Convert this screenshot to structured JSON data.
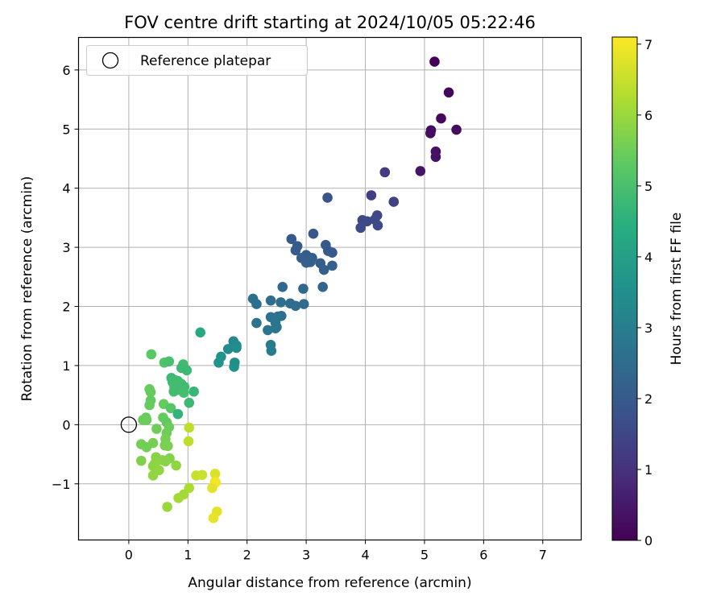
{
  "chart_data": {
    "type": "scatter",
    "title": "FOV centre drift starting at 2024/10/05 05:22:46",
    "xlabel": "Angular distance from reference (arcmin)",
    "ylabel": "Rotation from reference (arcmin)",
    "xlim": [
      -0.85,
      7.65
    ],
    "ylim": [
      -1.95,
      6.55
    ],
    "xticks": [
      0,
      1,
      2,
      3,
      4,
      5,
      6,
      7
    ],
    "yticks": [
      -1,
      0,
      1,
      2,
      3,
      4,
      5,
      6
    ],
    "grid": true,
    "legend": {
      "position": "upper-left",
      "entries": [
        "Reference platepar"
      ]
    },
    "reference_point": {
      "x": 0,
      "y": 0,
      "marker": "open-circle"
    },
    "colorbar": {
      "label": "Hours from first FF file",
      "range": [
        0,
        7.1
      ],
      "ticks": [
        0,
        1,
        2,
        3,
        4,
        5,
        6,
        7
      ],
      "colormap": "viridis"
    },
    "points": [
      {
        "x": 5.17,
        "y": 6.14,
        "c": 0.05
      },
      {
        "x": 5.41,
        "y": 5.62,
        "c": 0.1
      },
      {
        "x": 5.28,
        "y": 5.18,
        "c": 0.15
      },
      {
        "x": 5.11,
        "y": 4.98,
        "c": 0.2
      },
      {
        "x": 5.1,
        "y": 4.93,
        "c": 0.25
      },
      {
        "x": 5.54,
        "y": 4.99,
        "c": 0.2
      },
      {
        "x": 5.19,
        "y": 4.62,
        "c": 0.3
      },
      {
        "x": 5.19,
        "y": 4.53,
        "c": 0.35
      },
      {
        "x": 4.93,
        "y": 4.29,
        "c": 0.4
      },
      {
        "x": 4.33,
        "y": 4.27,
        "c": 1.2
      },
      {
        "x": 4.1,
        "y": 3.88,
        "c": 1.3
      },
      {
        "x": 4.48,
        "y": 3.77,
        "c": 1.4
      },
      {
        "x": 3.36,
        "y": 3.84,
        "c": 1.8
      },
      {
        "x": 3.95,
        "y": 3.46,
        "c": 1.5
      },
      {
        "x": 4.2,
        "y": 3.54,
        "c": 1.5
      },
      {
        "x": 4.03,
        "y": 3.44,
        "c": 1.55
      },
      {
        "x": 3.92,
        "y": 3.33,
        "c": 1.6
      },
      {
        "x": 4.21,
        "y": 3.37,
        "c": 1.6
      },
      {
        "x": 4.16,
        "y": 3.47,
        "c": 1.55
      },
      {
        "x": 3.12,
        "y": 3.23,
        "c": 1.9
      },
      {
        "x": 2.75,
        "y": 3.14,
        "c": 2.0
      },
      {
        "x": 2.85,
        "y": 3.02,
        "c": 2.0
      },
      {
        "x": 3.33,
        "y": 3.04,
        "c": 1.95
      },
      {
        "x": 3.37,
        "y": 2.94,
        "c": 1.95
      },
      {
        "x": 3.44,
        "y": 2.91,
        "c": 2.0
      },
      {
        "x": 2.82,
        "y": 2.95,
        "c": 2.05
      },
      {
        "x": 3.0,
        "y": 2.87,
        "c": 2.05
      },
      {
        "x": 2.92,
        "y": 2.82,
        "c": 2.1
      },
      {
        "x": 3.1,
        "y": 2.82,
        "c": 2.1
      },
      {
        "x": 3.24,
        "y": 2.73,
        "c": 2.1
      },
      {
        "x": 3.07,
        "y": 2.75,
        "c": 2.15
      },
      {
        "x": 3.3,
        "y": 2.62,
        "c": 2.15
      },
      {
        "x": 3.44,
        "y": 2.69,
        "c": 2.15
      },
      {
        "x": 3.0,
        "y": 2.74,
        "c": 2.15
      },
      {
        "x": 2.6,
        "y": 2.33,
        "c": 2.4
      },
      {
        "x": 2.95,
        "y": 2.3,
        "c": 2.4
      },
      {
        "x": 3.28,
        "y": 2.33,
        "c": 2.3
      },
      {
        "x": 2.1,
        "y": 2.13,
        "c": 2.6
      },
      {
        "x": 2.16,
        "y": 2.04,
        "c": 2.6
      },
      {
        "x": 2.4,
        "y": 2.1,
        "c": 2.5
      },
      {
        "x": 2.57,
        "y": 2.07,
        "c": 2.55
      },
      {
        "x": 2.73,
        "y": 2.05,
        "c": 2.5
      },
      {
        "x": 2.82,
        "y": 2.01,
        "c": 2.5
      },
      {
        "x": 2.96,
        "y": 2.04,
        "c": 2.45
      },
      {
        "x": 2.4,
        "y": 1.82,
        "c": 2.65
      },
      {
        "x": 2.52,
        "y": 1.83,
        "c": 2.65
      },
      {
        "x": 2.58,
        "y": 1.84,
        "c": 2.65
      },
      {
        "x": 2.16,
        "y": 1.72,
        "c": 2.7
      },
      {
        "x": 2.48,
        "y": 1.73,
        "c": 2.7
      },
      {
        "x": 2.35,
        "y": 1.6,
        "c": 2.75
      },
      {
        "x": 2.48,
        "y": 1.63,
        "c": 2.75
      },
      {
        "x": 2.5,
        "y": 1.65,
        "c": 2.75
      },
      {
        "x": 2.4,
        "y": 1.35,
        "c": 2.9
      },
      {
        "x": 2.41,
        "y": 1.25,
        "c": 2.95
      },
      {
        "x": 1.21,
        "y": 1.56,
        "c": 4.3
      },
      {
        "x": 1.77,
        "y": 1.41,
        "c": 3.3
      },
      {
        "x": 1.68,
        "y": 1.28,
        "c": 3.4
      },
      {
        "x": 1.82,
        "y": 1.34,
        "c": 3.35
      },
      {
        "x": 1.82,
        "y": 1.3,
        "c": 3.4
      },
      {
        "x": 1.56,
        "y": 1.15,
        "c": 3.6
      },
      {
        "x": 1.52,
        "y": 1.05,
        "c": 3.65
      },
      {
        "x": 1.79,
        "y": 1.05,
        "c": 3.5
      },
      {
        "x": 1.78,
        "y": 0.98,
        "c": 3.55
      },
      {
        "x": 0.38,
        "y": 1.19,
        "c": 5.3
      },
      {
        "x": 0.6,
        "y": 1.05,
        "c": 5.1
      },
      {
        "x": 0.68,
        "y": 1.07,
        "c": 5.0
      },
      {
        "x": 0.92,
        "y": 1.02,
        "c": 4.9
      },
      {
        "x": 0.89,
        "y": 0.96,
        "c": 4.8
      },
      {
        "x": 0.98,
        "y": 0.92,
        "c": 4.8
      },
      {
        "x": 0.72,
        "y": 0.79,
        "c": 4.8
      },
      {
        "x": 0.79,
        "y": 0.75,
        "c": 4.8
      },
      {
        "x": 0.74,
        "y": 0.72,
        "c": 4.85
      },
      {
        "x": 0.83,
        "y": 0.74,
        "c": 4.9
      },
      {
        "x": 0.89,
        "y": 0.69,
        "c": 4.9
      },
      {
        "x": 0.94,
        "y": 0.64,
        "c": 4.85
      },
      {
        "x": 0.77,
        "y": 0.63,
        "c": 4.9
      },
      {
        "x": 0.85,
        "y": 0.59,
        "c": 4.9
      },
      {
        "x": 1.1,
        "y": 0.56,
        "c": 4.7
      },
      {
        "x": 0.76,
        "y": 0.56,
        "c": 4.9
      },
      {
        "x": 0.35,
        "y": 0.6,
        "c": 5.4
      },
      {
        "x": 0.37,
        "y": 0.55,
        "c": 5.4
      },
      {
        "x": 0.93,
        "y": 0.54,
        "c": 4.95
      },
      {
        "x": 0.37,
        "y": 0.41,
        "c": 5.35
      },
      {
        "x": 0.35,
        "y": 0.33,
        "c": 5.4
      },
      {
        "x": 0.59,
        "y": 0.35,
        "c": 5.4
      },
      {
        "x": 1.02,
        "y": 0.37,
        "c": 4.8
      },
      {
        "x": 0.71,
        "y": 0.28,
        "c": 5.2
      },
      {
        "x": 0.83,
        "y": 0.18,
        "c": 4.6
      },
      {
        "x": 0.29,
        "y": 0.12,
        "c": 5.4
      },
      {
        "x": 0.24,
        "y": 0.08,
        "c": 5.45
      },
      {
        "x": 0.3,
        "y": 0.08,
        "c": 5.45
      },
      {
        "x": 0.58,
        "y": 0.12,
        "c": 5.4
      },
      {
        "x": 0.64,
        "y": 0.04,
        "c": 5.35
      },
      {
        "x": 0.47,
        "y": -0.07,
        "c": 5.5
      },
      {
        "x": 0.68,
        "y": -0.04,
        "c": 5.45
      },
      {
        "x": 0.64,
        "y": -0.14,
        "c": 5.5
      },
      {
        "x": 0.62,
        "y": -0.24,
        "c": 5.6
      },
      {
        "x": 0.41,
        "y": -0.31,
        "c": 5.6
      },
      {
        "x": 0.21,
        "y": -0.33,
        "c": 5.55
      },
      {
        "x": 0.3,
        "y": -0.38,
        "c": 5.55
      },
      {
        "x": 0.61,
        "y": -0.35,
        "c": 5.6
      },
      {
        "x": 0.66,
        "y": -0.36,
        "c": 5.65
      },
      {
        "x": 0.46,
        "y": -0.55,
        "c": 5.8
      },
      {
        "x": 0.21,
        "y": -0.61,
        "c": 5.7
      },
      {
        "x": 0.69,
        "y": -0.57,
        "c": 5.75
      },
      {
        "x": 0.57,
        "y": -0.6,
        "c": 5.8
      },
      {
        "x": 0.62,
        "y": -0.62,
        "c": 5.8
      },
      {
        "x": 0.44,
        "y": -0.66,
        "c": 5.85
      },
      {
        "x": 0.41,
        "y": -0.7,
        "c": 5.85
      },
      {
        "x": 0.8,
        "y": -0.69,
        "c": 5.9
      },
      {
        "x": 0.51,
        "y": -0.77,
        "c": 5.9
      },
      {
        "x": 0.41,
        "y": -0.86,
        "c": 5.9
      },
      {
        "x": 1.02,
        "y": -0.05,
        "c": 6.4
      },
      {
        "x": 1.01,
        "y": -0.28,
        "c": 6.4
      },
      {
        "x": 1.14,
        "y": -0.86,
        "c": 6.5
      },
      {
        "x": 1.24,
        "y": -0.85,
        "c": 6.55
      },
      {
        "x": 1.46,
        "y": -0.83,
        "c": 6.7
      },
      {
        "x": 1.46,
        "y": -0.96,
        "c": 6.9
      },
      {
        "x": 1.47,
        "y": -0.98,
        "c": 7.0
      },
      {
        "x": 1.41,
        "y": -1.07,
        "c": 6.8
      },
      {
        "x": 1.02,
        "y": -1.07,
        "c": 6.2
      },
      {
        "x": 0.93,
        "y": -1.18,
        "c": 6.1
      },
      {
        "x": 0.84,
        "y": -1.24,
        "c": 6.1
      },
      {
        "x": 0.65,
        "y": -1.39,
        "c": 6.0
      },
      {
        "x": 1.49,
        "y": -1.47,
        "c": 6.8
      },
      {
        "x": 1.43,
        "y": -1.58,
        "c": 6.85
      }
    ]
  }
}
